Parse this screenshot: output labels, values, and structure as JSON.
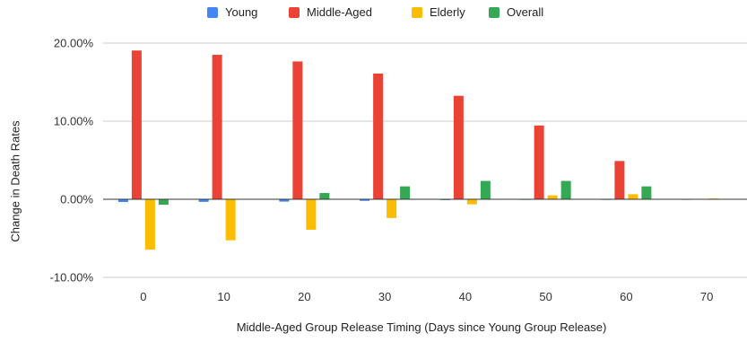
{
  "chart_data": {
    "type": "bar",
    "categories": [
      "0",
      "10",
      "20",
      "30",
      "40",
      "50",
      "60",
      "70"
    ],
    "series": [
      {
        "name": "Young",
        "color": "#4285F4",
        "values": [
          -0.0035,
          -0.0033,
          -0.003,
          -0.002,
          -0.001,
          -0.0008,
          -0.0008,
          -0.0005
        ]
      },
      {
        "name": "Middle-Aged",
        "color": "#EA4335",
        "values": [
          0.1905,
          0.185,
          0.1765,
          0.161,
          0.1325,
          0.0945,
          0.049,
          0.0005
        ]
      },
      {
        "name": "Elderly",
        "color": "#FBBC04",
        "values": [
          -0.0645,
          -0.0525,
          -0.039,
          -0.024,
          -0.0065,
          0.005,
          0.0065,
          0.001
        ]
      },
      {
        "name": "Overall",
        "color": "#34A853",
        "values": [
          -0.007,
          0.0005,
          0.008,
          0.0165,
          0.0235,
          0.0235,
          0.0165,
          0.0005
        ]
      }
    ],
    "yticks": [
      "20.00%",
      "10.00%",
      "0.00%",
      "-10.00%"
    ],
    "ytick_values": [
      0.2,
      0.1,
      0.0,
      -0.1
    ],
    "ylim": [
      -0.1,
      0.2
    ],
    "xlabel": "Middle-Aged Group Release Timing (Days since Young Group Release)",
    "ylabel": "Change in Death Rates",
    "legend_position": "top",
    "grid": "horizontal"
  }
}
